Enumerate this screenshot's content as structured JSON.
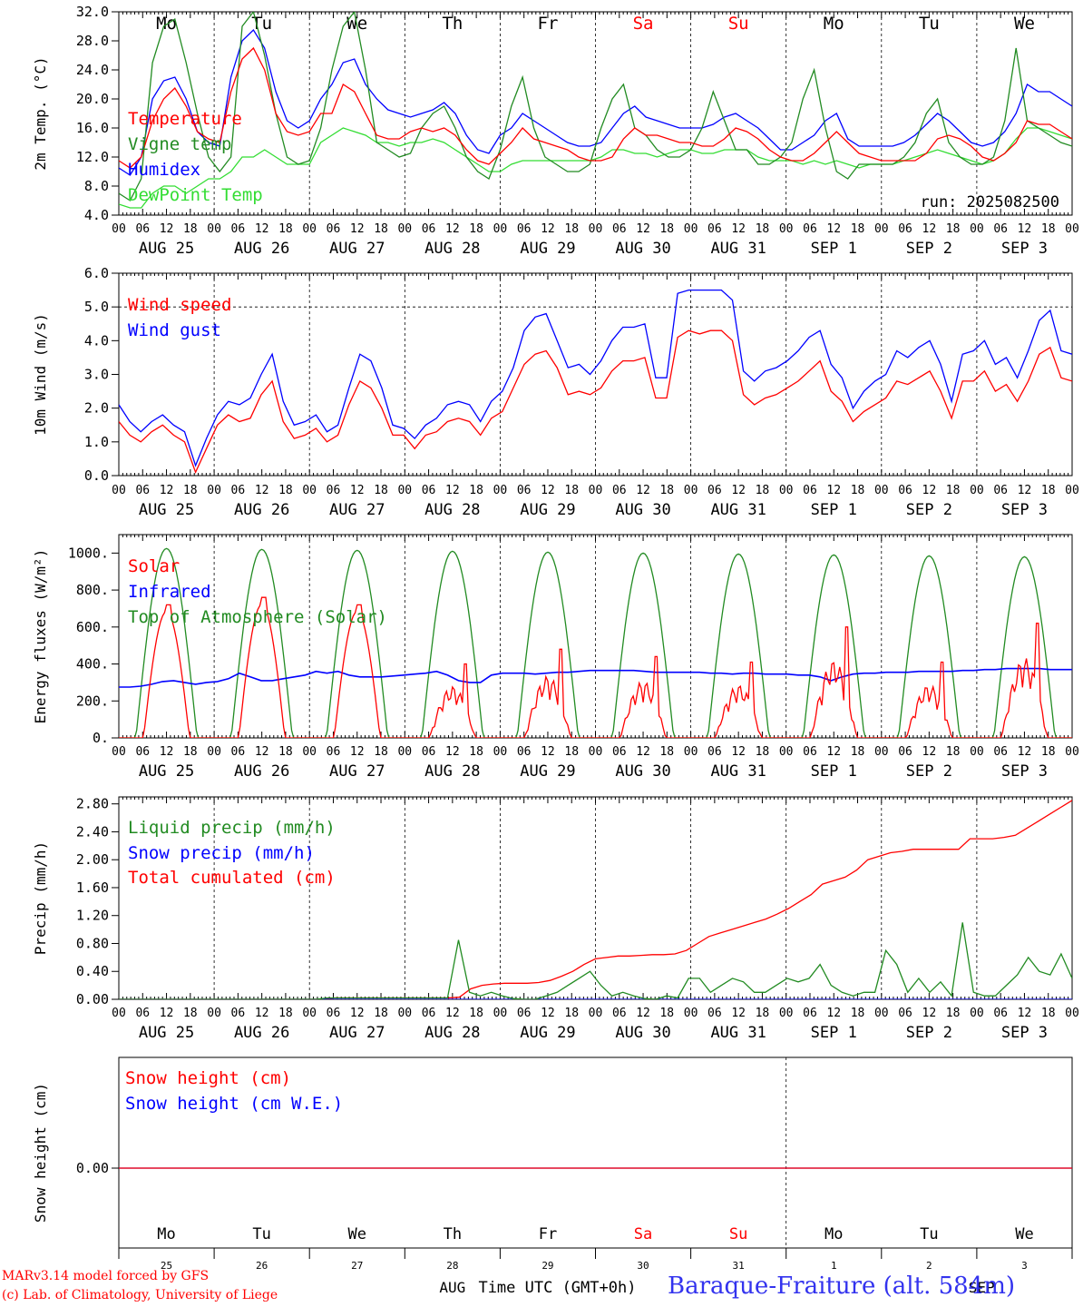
{
  "days": {
    "weekdays": [
      "Mo",
      "Tu",
      "We",
      "Th",
      "Fr",
      "Sa",
      "Su",
      "Mo",
      "Tu",
      "We"
    ],
    "weekend_index": [
      5,
      6
    ],
    "dates": [
      "AUG 25",
      "AUG 26",
      "AUG 27",
      "AUG 28",
      "AUG 29",
      "AUG 30",
      "AUG 31",
      "SEP  1",
      "SEP  2",
      "SEP  3"
    ],
    "day_numbers": [
      "25",
      "26",
      "27",
      "28",
      "29",
      "30",
      "31",
      "1",
      "2",
      "3"
    ],
    "hour_ticks": [
      "00",
      "06",
      "12",
      "18"
    ],
    "month_labels": [
      "AUG",
      "SEP"
    ]
  },
  "colors": {
    "red": "#ff0000",
    "green": "#228b22",
    "blue": "#0000ff",
    "lightgreen": "#33dd33",
    "weekend": "#ff0000"
  },
  "chart_data": [
    {
      "type": "line",
      "ylabel": "2m Temp. (°C)",
      "ylim": [
        4,
        32
      ],
      "yticks": [
        "4.0",
        "8.0",
        "12.0",
        "16.0",
        "20.0",
        "24.0",
        "28.0",
        "32.0"
      ],
      "annotation": "run: 2025082500",
      "legend": [
        {
          "name": "Temperature",
          "color": "red"
        },
        {
          "name": "Vigne temp",
          "color": "green"
        },
        {
          "name": "Humidex",
          "color": "blue"
        },
        {
          "name": "DewPoint Temp",
          "color": "lightgreen"
        }
      ],
      "series": [
        {
          "name": "Temperature",
          "color": "red",
          "values": [
            11.5,
            10.5,
            12,
            17,
            20,
            21.5,
            19,
            15.5,
            14.5,
            14,
            21,
            25.5,
            27,
            24,
            18,
            15.5,
            15,
            15.5,
            18,
            18,
            22,
            21,
            18,
            15,
            14.5,
            14.5,
            15.5,
            16,
            15.5,
            16,
            15,
            13,
            11.5,
            11,
            12.5,
            14,
            16,
            14.5,
            14,
            13.5,
            13,
            12,
            11.5,
            11.5,
            12,
            14.5,
            16,
            15,
            15,
            14.5,
            14,
            14,
            13.5,
            13.5,
            14.5,
            16,
            15.5,
            14.5,
            13,
            12,
            11.5,
            11.5,
            12.5,
            14,
            15.5,
            14,
            12.5,
            12,
            11.5,
            11.5,
            11.5,
            11.5,
            12.5,
            14.5,
            15,
            14.5,
            13.5,
            12,
            11.5,
            12.5,
            14,
            17,
            16.5,
            16.5,
            15.5,
            14.5
          ]
        },
        {
          "name": "Vigne temp",
          "color": "green",
          "values": [
            7,
            6,
            9,
            25,
            30,
            31,
            25,
            18,
            12,
            10,
            12,
            30,
            32,
            26,
            18,
            12,
            11,
            11.5,
            16,
            24,
            30,
            32,
            24,
            14,
            13,
            12,
            12.5,
            16,
            18,
            19,
            16,
            12,
            10,
            9,
            13,
            19,
            23,
            16,
            12,
            11,
            10,
            10,
            11,
            16,
            20,
            22,
            16,
            15,
            13,
            12,
            12,
            13,
            16,
            21,
            17,
            13,
            13,
            11,
            11,
            12,
            14,
            20,
            24,
            16,
            10,
            9,
            11,
            11,
            11,
            11,
            12,
            14,
            18,
            20,
            14,
            12,
            11,
            11,
            12,
            17,
            27,
            17,
            16,
            15,
            14,
            13.5
          ]
        },
        {
          "name": "Humidex",
          "color": "blue",
          "values": [
            10.5,
            9.5,
            12,
            20,
            22.5,
            23,
            20,
            15.5,
            14,
            13.5,
            23,
            28,
            29.5,
            27,
            21,
            17,
            16,
            17,
            20,
            22,
            25,
            25.5,
            22,
            20,
            18.5,
            18,
            17.5,
            18,
            18.5,
            19.5,
            18,
            15,
            13,
            12.5,
            15,
            16,
            18,
            17,
            16,
            15,
            14,
            13.5,
            13.5,
            14,
            16,
            18,
            19,
            17.5,
            17,
            16.5,
            16,
            16,
            16,
            16.5,
            17.5,
            18,
            17,
            16,
            14.5,
            13,
            13,
            14,
            15,
            17,
            18,
            14.5,
            13.5,
            13.5,
            13.5,
            13.5,
            14,
            15,
            16.5,
            18,
            17,
            15.5,
            14,
            13.5,
            14,
            15.5,
            18,
            22,
            21,
            21,
            20,
            19
          ]
        },
        {
          "name": "DewPoint Temp",
          "color": "lightgreen",
          "values": [
            5.5,
            5,
            5,
            7,
            8,
            8,
            7,
            8,
            9,
            9,
            10,
            12,
            12,
            13,
            12,
            11,
            11,
            11,
            14,
            15,
            16,
            15.5,
            15,
            14,
            14,
            13.5,
            14,
            14,
            14.5,
            14,
            13,
            12,
            11,
            10,
            10,
            11,
            11.5,
            11.5,
            11.5,
            11.5,
            11.5,
            11.5,
            11.5,
            12,
            13,
            13,
            12.5,
            12.5,
            12,
            12.5,
            13,
            13,
            12.5,
            12.5,
            13,
            13,
            13,
            12,
            11.5,
            11.5,
            11.5,
            11,
            11.5,
            11,
            11.5,
            11,
            10.5,
            11,
            11,
            11,
            11.5,
            12,
            12.5,
            13,
            12.5,
            12,
            11.5,
            11,
            11.5,
            12.5,
            14.5,
            16,
            16,
            15.5,
            15,
            14.5
          ]
        }
      ]
    },
    {
      "type": "line",
      "ylabel": "10m Wind (m/s)",
      "ylim": [
        0,
        6
      ],
      "yticks": [
        "0.0",
        "1.0",
        "2.0",
        "3.0",
        "4.0",
        "5.0",
        "6.0"
      ],
      "legend": [
        {
          "name": "Wind speed",
          "color": "red"
        },
        {
          "name": "Wind gust",
          "color": "blue"
        }
      ],
      "series": [
        {
          "name": "Wind speed",
          "color": "red",
          "values": [
            1.6,
            1.2,
            1.0,
            1.3,
            1.5,
            1.2,
            1.0,
            0.1,
            0.8,
            1.5,
            1.8,
            1.6,
            1.7,
            2.4,
            2.8,
            1.6,
            1.1,
            1.2,
            1.4,
            1.0,
            1.2,
            2.1,
            2.8,
            2.6,
            2.0,
            1.2,
            1.2,
            0.8,
            1.2,
            1.3,
            1.6,
            1.7,
            1.6,
            1.2,
            1.7,
            1.9,
            2.6,
            3.3,
            3.6,
            3.7,
            3.2,
            2.4,
            2.5,
            2.4,
            2.6,
            3.1,
            3.4,
            3.4,
            3.5,
            2.3,
            2.3,
            4.1,
            4.3,
            4.2,
            4.3,
            4.3,
            4.0,
            2.4,
            2.1,
            2.3,
            2.4,
            2.6,
            2.8,
            3.1,
            3.4,
            2.5,
            2.2,
            1.6,
            1.9,
            2.1,
            2.3,
            2.8,
            2.7,
            2.9,
            3.1,
            2.5,
            1.7,
            2.8,
            2.8,
            3.1,
            2.5,
            2.7,
            2.2,
            2.8,
            3.6,
            3.8,
            2.9,
            2.8
          ]
        },
        {
          "name": "Wind gust",
          "color": "blue",
          "values": [
            2.1,
            1.6,
            1.3,
            1.6,
            1.8,
            1.5,
            1.3,
            0.3,
            1.1,
            1.8,
            2.2,
            2.1,
            2.3,
            3.0,
            3.6,
            2.2,
            1.5,
            1.6,
            1.8,
            1.3,
            1.5,
            2.6,
            3.6,
            3.4,
            2.6,
            1.5,
            1.4,
            1.1,
            1.5,
            1.7,
            2.1,
            2.2,
            2.1,
            1.6,
            2.2,
            2.5,
            3.2,
            4.3,
            4.7,
            4.8,
            4.0,
            3.2,
            3.3,
            3.0,
            3.4,
            4.0,
            4.4,
            4.4,
            4.5,
            2.9,
            2.9,
            5.4,
            5.5,
            5.5,
            5.5,
            5.5,
            5.2,
            3.1,
            2.8,
            3.1,
            3.2,
            3.4,
            3.7,
            4.1,
            4.3,
            3.3,
            2.9,
            2.0,
            2.5,
            2.8,
            3.0,
            3.7,
            3.5,
            3.8,
            4.0,
            3.3,
            2.2,
            3.6,
            3.7,
            4.0,
            3.3,
            3.5,
            2.9,
            3.7,
            4.6,
            4.9,
            3.7,
            3.6
          ]
        }
      ]
    },
    {
      "type": "line",
      "ylabel": "Energy fluxes (W/m²)",
      "ylim": [
        0,
        1100
      ],
      "yticks": [
        "0.",
        "200.",
        "400.",
        "600.",
        "800.",
        "1000."
      ],
      "legend": [
        {
          "name": "Solar",
          "color": "red"
        },
        {
          "name": "Infrared",
          "color": "blue"
        },
        {
          "name": "Top of Atmosphere (Solar)",
          "color": "green"
        }
      ],
      "series": [
        {
          "name": "Solar",
          "color": "red",
          "peaks": [
            720,
            760,
            720,
            400,
            480,
            440,
            410,
            600,
            410,
            620
          ]
        },
        {
          "name": "Infrared",
          "color": "blue",
          "values": [
            275,
            275,
            280,
            290,
            305,
            310,
            300,
            290,
            300,
            305,
            320,
            350,
            330,
            310,
            310,
            320,
            330,
            340,
            360,
            350,
            360,
            340,
            330,
            330,
            330,
            335,
            340,
            345,
            350,
            360,
            340,
            310,
            300,
            300,
            340,
            350,
            350,
            350,
            345,
            350,
            355,
            355,
            360,
            365,
            365,
            365,
            365,
            365,
            360,
            355,
            355,
            355,
            355,
            355,
            350,
            350,
            345,
            350,
            350,
            345,
            345,
            345,
            340,
            340,
            330,
            310,
            330,
            345,
            350,
            350,
            355,
            355,
            355,
            360,
            360,
            360,
            360,
            365,
            365,
            370,
            370,
            375,
            375,
            375,
            375,
            370,
            370,
            370
          ]
        },
        {
          "name": "Top of Atmosphere (Solar)",
          "color": "green",
          "peaks": [
            1025,
            1020,
            1015,
            1010,
            1005,
            1000,
            995,
            990,
            985,
            980
          ]
        }
      ]
    },
    {
      "type": "line",
      "ylabel": "Precip (mm/h)",
      "ylim": [
        0,
        2.9
      ],
      "yticks": [
        "0.00",
        "0.40",
        "0.80",
        "1.20",
        "1.60",
        "2.00",
        "2.40",
        "2.80"
      ],
      "legend": [
        {
          "name": "Liquid precip (mm/h)",
          "color": "green"
        },
        {
          "name": "Snow precip (mm/h)",
          "color": "blue"
        },
        {
          "name": "Total cumulated (cm)",
          "color": "red"
        }
      ],
      "series": [
        {
          "name": "Liquid precip (mm/h)",
          "color": "green",
          "values": [
            0,
            0,
            0,
            0,
            0,
            0,
            0,
            0,
            0,
            0,
            0,
            0,
            0,
            0,
            0,
            0,
            0,
            0,
            0,
            0.02,
            0.02,
            0.02,
            0.02,
            0.02,
            0.02,
            0.02,
            0.02,
            0.02,
            0.02,
            0.02,
            0.02,
            0.85,
            0.1,
            0.05,
            0.1,
            0.05,
            0.01,
            0,
            0,
            0.05,
            0.1,
            0.2,
            0.3,
            0.4,
            0.2,
            0.05,
            0.1,
            0.05,
            0.01,
            0,
            0.05,
            0.02,
            0.3,
            0.3,
            0.1,
            0.2,
            0.3,
            0.25,
            0.1,
            0.1,
            0.2,
            0.3,
            0.25,
            0.3,
            0.5,
            0.2,
            0.1,
            0.05,
            0.1,
            0.1,
            0.7,
            0.5,
            0.1,
            0.3,
            0.1,
            0.25,
            0.05,
            1.1,
            0.1,
            0.05,
            0.05,
            0.2,
            0.35,
            0.6,
            0.4,
            0.35,
            0.65,
            0.3
          ]
        },
        {
          "name": "Snow precip (mm/h)",
          "color": "blue",
          "values": [
            0,
            0,
            0,
            0,
            0,
            0,
            0,
            0,
            0,
            0
          ]
        },
        {
          "name": "Total cumulated (cm)",
          "color": "red",
          "values": [
            0,
            0,
            0,
            0,
            0,
            0,
            0,
            0,
            0,
            0,
            0,
            0,
            0,
            0,
            0,
            0,
            0,
            0,
            0,
            0.02,
            0.02,
            0.02,
            0.02,
            0.02,
            0.02,
            0.02,
            0.02,
            0.02,
            0.02,
            0.02,
            0.03,
            0.15,
            0.2,
            0.22,
            0.23,
            0.23,
            0.23,
            0.24,
            0.27,
            0.33,
            0.4,
            0.5,
            0.58,
            0.6,
            0.62,
            0.62,
            0.63,
            0.64,
            0.64,
            0.65,
            0.7,
            0.8,
            0.9,
            0.95,
            1.0,
            1.05,
            1.1,
            1.15,
            1.22,
            1.3,
            1.4,
            1.5,
            1.65,
            1.7,
            1.75,
            1.85,
            2.0,
            2.05,
            2.1,
            2.12,
            2.15,
            2.15,
            2.15,
            2.15,
            2.15,
            2.3,
            2.3,
            2.3,
            2.32,
            2.35,
            2.45,
            2.55,
            2.65,
            2.75,
            2.85
          ]
        }
      ]
    },
    {
      "type": "line",
      "ylabel": "Snow height (cm)",
      "yticks": [
        "0.00"
      ],
      "legend": [
        {
          "name": "Snow height (cm)",
          "color": "red"
        },
        {
          "name": "Snow height (cm W.E.)",
          "color": "blue"
        }
      ],
      "series": [
        {
          "name": "Snow height (cm)",
          "color": "red",
          "values": [
            0,
            0
          ]
        },
        {
          "name": "Snow height (cm W.E.)",
          "color": "blue",
          "values": [
            0,
            0
          ]
        }
      ]
    }
  ],
  "xlabel": "Time UTC (GMT+0h)",
  "footer": {
    "model": "MARv3.14 model forced by GFS",
    "lab": "(c) Lab. of Climatology, University of Liege",
    "station": "Baraque-Fraiture (alt. 584m)"
  }
}
